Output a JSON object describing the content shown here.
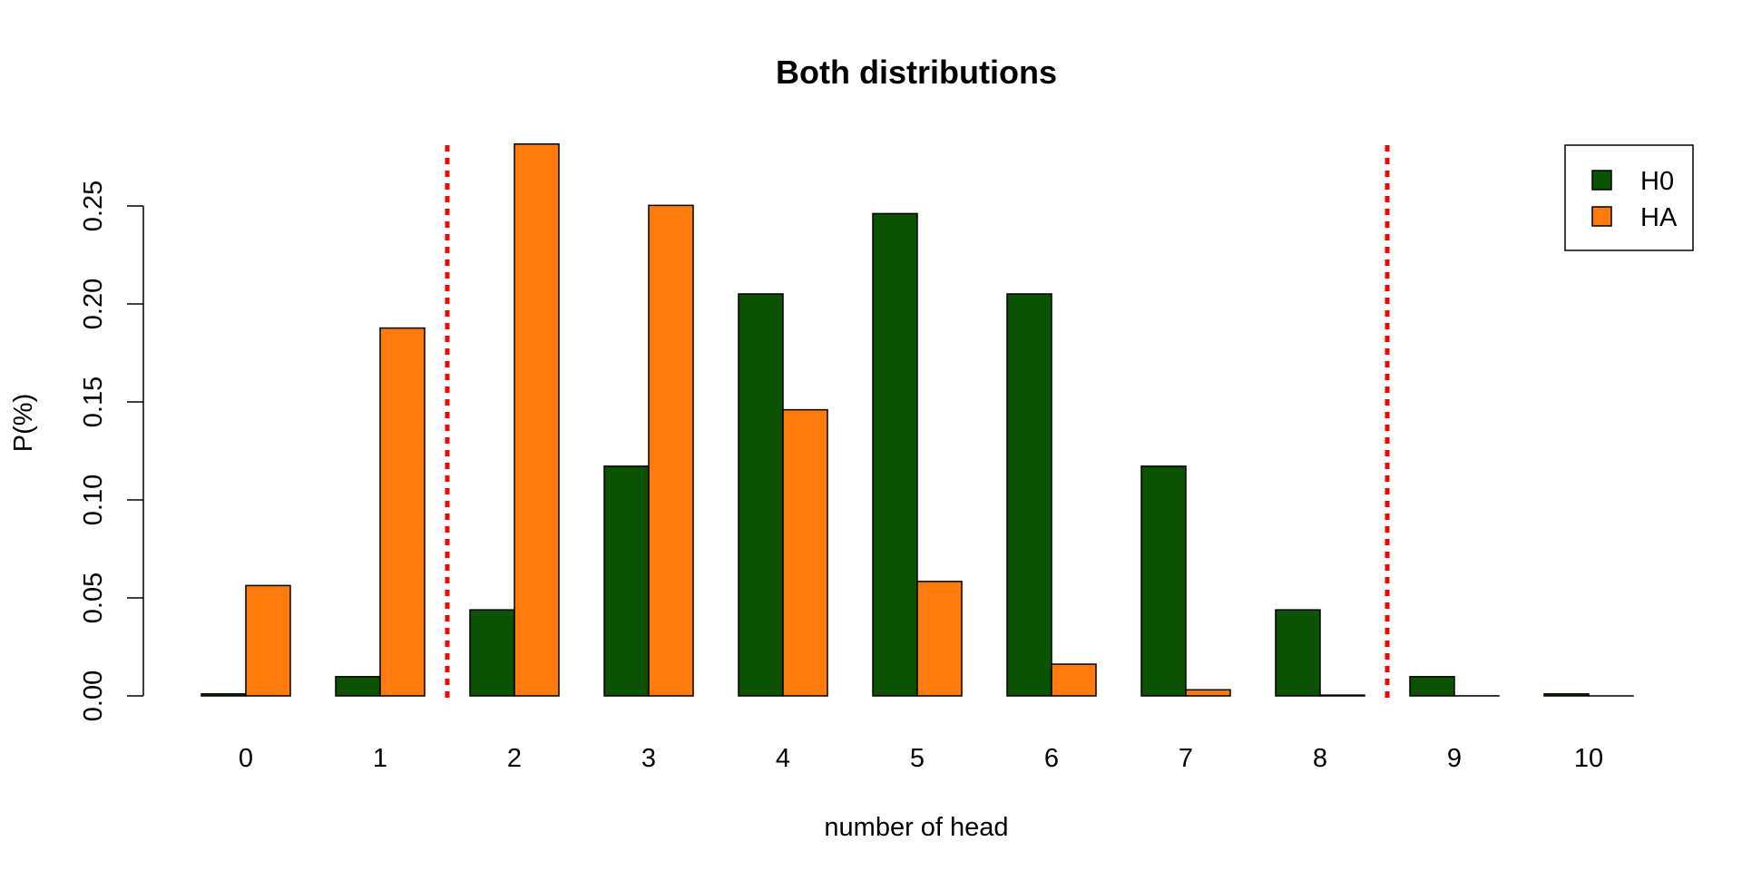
{
  "chart_data": {
    "type": "bar",
    "title": "Both distributions",
    "xlabel": "number of head",
    "ylabel": "P(%)",
    "categories": [
      "0",
      "1",
      "2",
      "3",
      "4",
      "5",
      "6",
      "7",
      "8",
      "9",
      "10"
    ],
    "series": [
      {
        "name": "H0",
        "color": "#0b5302",
        "values": [
          0.001,
          0.0098,
          0.0439,
          0.1172,
          0.2051,
          0.2461,
          0.2051,
          0.1172,
          0.0439,
          0.0098,
          0.001
        ]
      },
      {
        "name": "HA",
        "color": "#ff7b0e",
        "values": [
          0.0563,
          0.1877,
          0.2816,
          0.2503,
          0.146,
          0.0584,
          0.0162,
          0.0031,
          0.0004,
          3e-05,
          1e-06
        ]
      }
    ],
    "ylim": [
      0,
      0.28
    ],
    "yticks": [
      "0.00",
      "0.05",
      "0.10",
      "0.15",
      "0.20",
      "0.25"
    ],
    "ytick_values": [
      0,
      0.05,
      0.1,
      0.15,
      0.2,
      0.25
    ],
    "reference_lines": [
      {
        "orientation": "vertical",
        "between": [
          "1",
          "2"
        ],
        "style": "dotted",
        "color": "#ff0000"
      },
      {
        "orientation": "vertical",
        "between": [
          "8",
          "9"
        ],
        "style": "dotted",
        "color": "#ff0000"
      }
    ],
    "legend_position": "top-right",
    "grid": false
  }
}
